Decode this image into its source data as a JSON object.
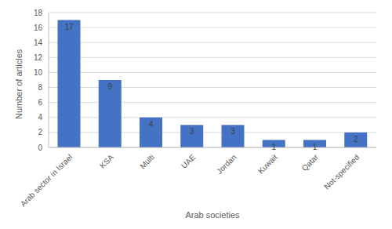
{
  "chart_data": {
    "type": "bar",
    "x_label": "Arab societies",
    "y_label": "Number of articles",
    "categories": [
      "Arab sector in Israel",
      "KSA",
      "Multi",
      "UAE",
      "Jordan",
      "Kuwait",
      "Qatar",
      "Not-specified"
    ],
    "values": [
      17,
      9,
      4,
      3,
      3,
      1,
      1,
      2
    ],
    "color": "#4472c4",
    "ylim": [
      0,
      18
    ],
    "yticks": [
      0,
      2,
      4,
      6,
      8,
      10,
      12,
      14,
      16,
      18
    ],
    "grid": true,
    "data_labels": true
  }
}
